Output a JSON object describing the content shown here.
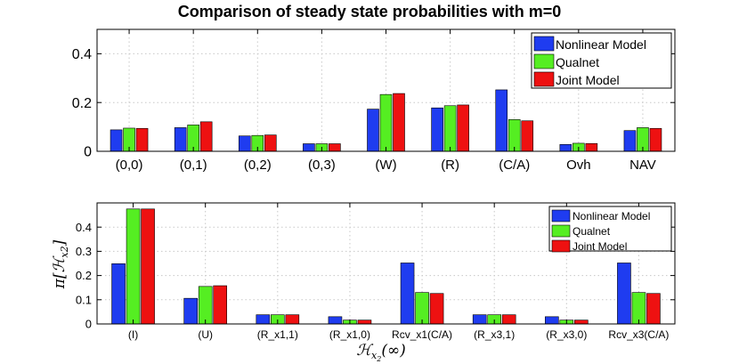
{
  "chart_data": [
    {
      "type": "bar",
      "title": "Comparison of steady state probabilities with m=0",
      "xlabel": "",
      "ylabel": "",
      "ylim": [
        0,
        0.5
      ],
      "yticks": [
        "0",
        "0.2",
        "0.4"
      ],
      "ytick_values": [
        0,
        0.2,
        0.4
      ],
      "grid": true,
      "legend_position": "top-right",
      "categories": [
        "(0,0)",
        "(0,1)",
        "(0,2)",
        "(0,3)",
        "(W)",
        "(R)",
        "(C/A)",
        "Ovh",
        "NAV"
      ],
      "series": [
        {
          "name": "Nonlinear Model",
          "color": "#1f3cf0",
          "values": [
            0.088,
            0.097,
            0.063,
            0.031,
            0.173,
            0.178,
            0.252,
            0.028,
            0.085
          ]
        },
        {
          "name": "Qualnet",
          "color": "#55ee22",
          "values": [
            0.095,
            0.108,
            0.065,
            0.031,
            0.233,
            0.187,
            0.13,
            0.033,
            0.097
          ]
        },
        {
          "name": "Joint Model",
          "color": "#ee1111",
          "values": [
            0.094,
            0.121,
            0.067,
            0.031,
            0.237,
            0.19,
            0.125,
            0.032,
            0.094
          ]
        }
      ]
    },
    {
      "type": "bar",
      "title": "",
      "xlabel": "H_{x2}(∞)",
      "ylabel": "π[H_{x2}]",
      "ylim": [
        0,
        0.5
      ],
      "yticks": [
        "0",
        "0.1",
        "0.2",
        "0.3",
        "0.4"
      ],
      "ytick_values": [
        0,
        0.1,
        0.2,
        0.3,
        0.4
      ],
      "grid": true,
      "legend_position": "top-right",
      "categories": [
        "(I)",
        "(U)",
        "(R_x1,1)",
        "(R_x1,0)",
        "Rcv_x1(C/A)",
        "(R_x3,1)",
        "(R_x3,0)",
        "Rcv_x3(C/A)"
      ],
      "series": [
        {
          "name": "Nonlinear Model",
          "color": "#1f3cf0",
          "values": [
            0.249,
            0.106,
            0.038,
            0.03,
            0.252,
            0.038,
            0.03,
            0.252
          ]
        },
        {
          "name": "Qualnet",
          "color": "#55ee22",
          "values": [
            0.475,
            0.155,
            0.038,
            0.016,
            0.13,
            0.038,
            0.016,
            0.13
          ]
        },
        {
          "name": "Joint Model",
          "color": "#ee1111",
          "values": [
            0.475,
            0.158,
            0.038,
            0.016,
            0.126,
            0.038,
            0.016,
            0.126
          ]
        }
      ]
    }
  ]
}
